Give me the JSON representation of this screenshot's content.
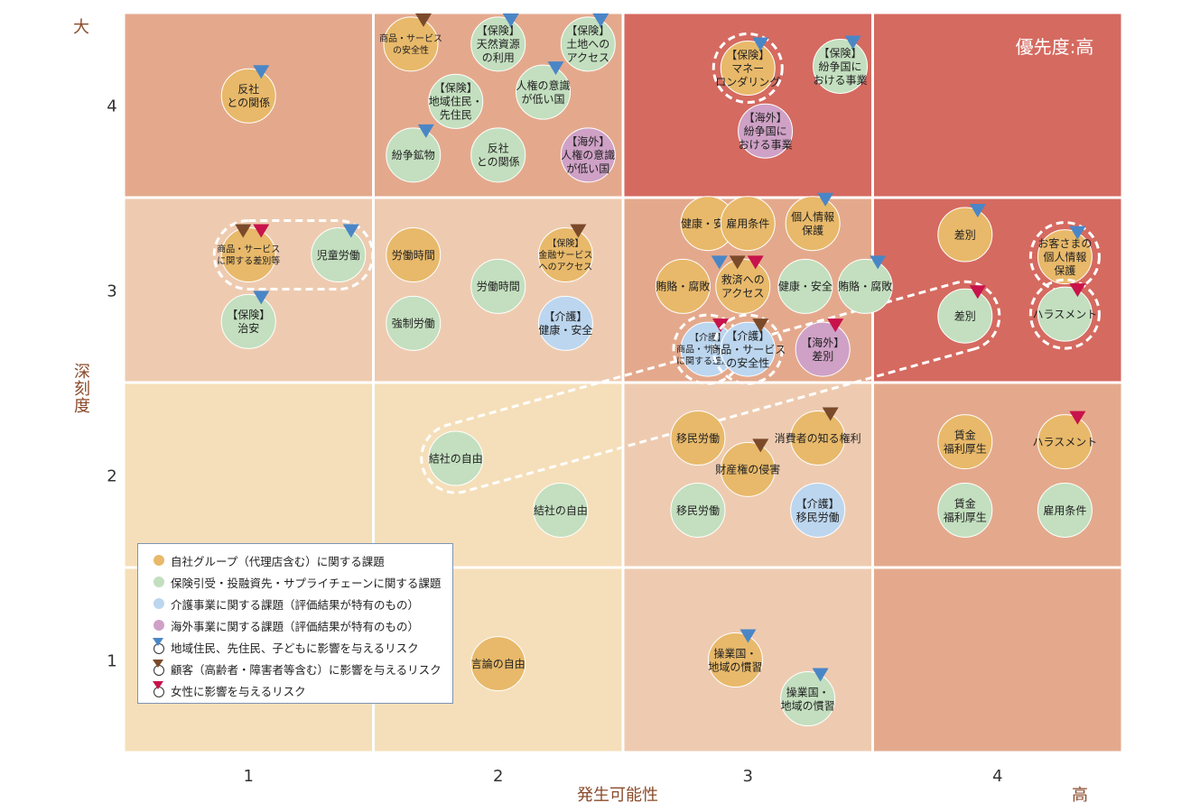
{
  "chart_data": {
    "type": "risk-matrix",
    "xlabel": "発生可能性",
    "xlabel_high": "高",
    "ylabel": "深刻度",
    "ylabel_large": "大",
    "x_ticks": [
      "1",
      "2",
      "3",
      "4"
    ],
    "y_ticks": [
      "4",
      "3",
      "2",
      "1"
    ],
    "priority_label": "優先度:高",
    "colors": {
      "self_group": "#e8b96a",
      "insurance": "#c3dfbf",
      "care": "#bcd6ef",
      "overseas": "#cfa1c6",
      "tri_community": "#4a86c6",
      "tri_customer": "#7b4a2a",
      "tri_women": "#c8134b",
      "cell_high": "#d56a60",
      "cell_midhigh": "#e4a98c",
      "cell_mid": "#eecbb0",
      "cell_low": "#f5dfba"
    },
    "cells": [
      {
        "x": 1,
        "y": 4,
        "level": "midhigh"
      },
      {
        "x": 2,
        "y": 4,
        "level": "midhigh"
      },
      {
        "x": 3,
        "y": 4,
        "level": "high"
      },
      {
        "x": 4,
        "y": 4,
        "level": "high"
      },
      {
        "x": 1,
        "y": 3,
        "level": "mid"
      },
      {
        "x": 2,
        "y": 3,
        "level": "mid"
      },
      {
        "x": 3,
        "y": 3,
        "level": "midhigh"
      },
      {
        "x": 4,
        "y": 3,
        "level": "high"
      },
      {
        "x": 1,
        "y": 2,
        "level": "low"
      },
      {
        "x": 2,
        "y": 2,
        "level": "low"
      },
      {
        "x": 3,
        "y": 2,
        "level": "mid"
      },
      {
        "x": 4,
        "y": 2,
        "level": "midhigh"
      },
      {
        "x": 1,
        "y": 1,
        "level": "low"
      },
      {
        "x": 2,
        "y": 1,
        "level": "low"
      },
      {
        "x": 3,
        "y": 1,
        "level": "mid"
      },
      {
        "x": 4,
        "y": 1,
        "level": "midhigh"
      }
    ],
    "bubbles": [
      {
        "x": 1.0,
        "y": 4.05,
        "cat": "self_group",
        "lines": [
          "反社",
          "との関係"
        ],
        "tris": [
          "community"
        ]
      },
      {
        "x": 1.65,
        "y": 4.33,
        "cat": "self_group",
        "lines": [
          "商品・サービス",
          "の安全性"
        ],
        "tris": [
          "customer"
        ],
        "small": true
      },
      {
        "x": 2.0,
        "y": 4.33,
        "cat": "insurance",
        "lines": [
          "【保険】",
          "天然資源",
          "の利用"
        ],
        "tris": [
          "community"
        ]
      },
      {
        "x": 2.36,
        "y": 4.33,
        "cat": "insurance",
        "lines": [
          "【保険】",
          "土地への",
          "アクセス"
        ],
        "tris": [
          "community"
        ]
      },
      {
        "x": 1.83,
        "y": 4.02,
        "cat": "insurance",
        "lines": [
          "【保険】",
          "地域住民・",
          "先住民"
        ]
      },
      {
        "x": 2.18,
        "y": 4.07,
        "cat": "insurance",
        "lines": [
          "人権の意識",
          "が低い国"
        ],
        "tris": [
          "community"
        ]
      },
      {
        "x": 1.66,
        "y": 3.73,
        "cat": "insurance",
        "lines": [
          "紛争鉱物"
        ],
        "tris": [
          "community"
        ]
      },
      {
        "x": 2.0,
        "y": 3.73,
        "cat": "insurance",
        "lines": [
          "反社",
          "との関係"
        ]
      },
      {
        "x": 2.36,
        "y": 3.73,
        "cat": "overseas",
        "lines": [
          "【海外】",
          "人権の意識",
          "が低い国"
        ]
      },
      {
        "x": 3.0,
        "y": 4.2,
        "cat": "self_group",
        "lines": [
          "【保険】",
          "マネー",
          "ロンダリング"
        ],
        "tris": [
          "community"
        ],
        "ring": true
      },
      {
        "x": 3.37,
        "y": 4.21,
        "cat": "insurance",
        "lines": [
          "【保険】",
          "紛争国に",
          "おける事業"
        ],
        "tris": [
          "community"
        ]
      },
      {
        "x": 3.07,
        "y": 3.86,
        "cat": "overseas",
        "lines": [
          "【海外】",
          "紛争国に",
          "おける事業"
        ]
      },
      {
        "x": 1.0,
        "y": 3.19,
        "cat": "self_group",
        "lines": [
          "商品・サービス",
          "に関する差別等"
        ],
        "tris": [
          "customer",
          "women"
        ],
        "small": true
      },
      {
        "x": 1.36,
        "y": 3.19,
        "cat": "insurance",
        "lines": [
          "児童労働"
        ],
        "tris": [
          "community"
        ]
      },
      {
        "x": 1.0,
        "y": 2.83,
        "cat": "insurance",
        "lines": [
          "【保険】",
          "治安"
        ],
        "tris": [
          "community"
        ]
      },
      {
        "x": 1.66,
        "y": 3.19,
        "cat": "self_group",
        "lines": [
          "労働時間"
        ]
      },
      {
        "x": 2.0,
        "y": 3.02,
        "cat": "insurance",
        "lines": [
          "労働時間"
        ]
      },
      {
        "x": 2.27,
        "y": 3.19,
        "cat": "self_group",
        "lines": [
          "【保険】",
          "金融サービス",
          "へのアクセス"
        ],
        "tris": [
          "customer"
        ],
        "small": true
      },
      {
        "x": 1.66,
        "y": 2.82,
        "cat": "insurance",
        "lines": [
          "強制労働"
        ]
      },
      {
        "x": 2.27,
        "y": 2.82,
        "cat": "care",
        "lines": [
          "【介護】",
          "健康・安全"
        ]
      },
      {
        "x": 2.84,
        "y": 3.36,
        "cat": "self_group",
        "lines": [
          "健康・安全"
        ]
      },
      {
        "x": 3.0,
        "y": 3.36,
        "cat": "self_group",
        "lines": [
          "雇用条件"
        ]
      },
      {
        "x": 3.26,
        "y": 3.36,
        "cat": "self_group",
        "lines": [
          "個人情報",
          "保護"
        ],
        "tris": [
          "community"
        ]
      },
      {
        "x": 2.74,
        "y": 3.02,
        "cat": "self_group",
        "lines": [
          "賄賂・腐敗"
        ]
      },
      {
        "x": 2.98,
        "y": 3.02,
        "cat": "self_group",
        "lines": [
          "救済への",
          "アクセス"
        ],
        "tris": [
          "community",
          "customer",
          "women"
        ]
      },
      {
        "x": 3.23,
        "y": 3.02,
        "cat": "insurance",
        "lines": [
          "健康・安全"
        ]
      },
      {
        "x": 3.47,
        "y": 3.02,
        "cat": "insurance",
        "lines": [
          "賄賂・腐敗"
        ],
        "tris": [
          "community"
        ]
      },
      {
        "x": 2.84,
        "y": 2.68,
        "cat": "care",
        "lines": [
          "【介護】",
          "商品・サービス",
          "に関する差別等"
        ],
        "tris": [
          "women"
        ],
        "ring": true,
        "small": true
      },
      {
        "x": 3.0,
        "y": 2.68,
        "cat": "care",
        "lines": [
          "【介護】",
          "商品・サービス",
          "の安全性"
        ],
        "tris": [
          "customer"
        ],
        "ring": true
      },
      {
        "x": 3.3,
        "y": 2.68,
        "cat": "overseas",
        "lines": [
          "【海外】",
          "差別"
        ],
        "tris": [
          "women"
        ]
      },
      {
        "x": 3.87,
        "y": 3.3,
        "cat": "self_group",
        "lines": [
          "差別"
        ],
        "tris": [
          "community"
        ]
      },
      {
        "x": 4.27,
        "y": 3.18,
        "cat": "self_group",
        "lines": [
          "お客さまの",
          "個人情報",
          "保護"
        ],
        "tris": [
          "community"
        ],
        "ring": true
      },
      {
        "x": 3.87,
        "y": 2.86,
        "cat": "insurance",
        "lines": [
          "差別"
        ],
        "tris": [
          "women"
        ]
      },
      {
        "x": 4.27,
        "y": 2.87,
        "cat": "insurance",
        "lines": [
          "ハラスメント"
        ],
        "tris": [
          "women"
        ],
        "ring": true
      },
      {
        "x": 1.83,
        "y": 2.09,
        "cat": "insurance",
        "lines": [
          "結社の自由"
        ]
      },
      {
        "x": 2.25,
        "y": 1.81,
        "cat": "insurance",
        "lines": [
          "結社の自由"
        ]
      },
      {
        "x": 2.8,
        "y": 2.2,
        "cat": "self_group",
        "lines": [
          "移民労働"
        ]
      },
      {
        "x": 3.28,
        "y": 2.2,
        "cat": "self_group",
        "lines": [
          "消費者の知る権利"
        ],
        "tris": [
          "customer"
        ]
      },
      {
        "x": 3.0,
        "y": 2.03,
        "cat": "self_group",
        "lines": [
          "財産権の侵害"
        ],
        "tris": [
          "customer"
        ]
      },
      {
        "x": 2.8,
        "y": 1.81,
        "cat": "insurance",
        "lines": [
          "移民労働"
        ]
      },
      {
        "x": 3.28,
        "y": 1.81,
        "cat": "care",
        "lines": [
          "【介護】",
          "移民労働"
        ]
      },
      {
        "x": 3.87,
        "y": 2.18,
        "cat": "self_group",
        "lines": [
          "賃金",
          "福利厚生"
        ]
      },
      {
        "x": 4.27,
        "y": 2.18,
        "cat": "self_group",
        "lines": [
          "ハラスメント"
        ],
        "tris": [
          "women"
        ]
      },
      {
        "x": 3.87,
        "y": 1.81,
        "cat": "insurance",
        "lines": [
          "賃金",
          "福利厚生"
        ]
      },
      {
        "x": 4.27,
        "y": 1.81,
        "cat": "insurance",
        "lines": [
          "雇用条件"
        ]
      },
      {
        "x": 2.0,
        "y": 0.98,
        "cat": "self_group",
        "lines": [
          "言論の自由"
        ]
      },
      {
        "x": 2.95,
        "y": 1.0,
        "cat": "self_group",
        "lines": [
          "操業国・",
          "地域の慣習"
        ],
        "tris": [
          "community"
        ]
      },
      {
        "x": 3.24,
        "y": 0.79,
        "cat": "insurance",
        "lines": [
          "操業国・",
          "地域の慣習"
        ],
        "tris": [
          "community"
        ]
      }
    ],
    "groups": [
      {
        "members": [
          12,
          13
        ],
        "type": "pill"
      },
      {
        "members": [
          32,
          34
        ],
        "type": "pill"
      }
    ],
    "legend": [
      {
        "kind": "dot",
        "color_key": "self_group",
        "label": "自社グループ（代理店含む）に関する課題"
      },
      {
        "kind": "dot",
        "color_key": "insurance",
        "label": "保険引受・投融資先・サプライチェーンに関する課題"
      },
      {
        "kind": "dot",
        "color_key": "care",
        "label": "介護事業に関する課題（評価結果が特有のもの）"
      },
      {
        "kind": "dot",
        "color_key": "overseas",
        "label": "海外事業に関する課題（評価結果が特有のもの）"
      },
      {
        "kind": "tri",
        "color_key": "tri_community",
        "label": "地域住民、先住民、子どもに影響を与えるリスク"
      },
      {
        "kind": "tri",
        "color_key": "tri_customer",
        "label": "顧客（高齢者・障害者等含む）に影響を与えるリスク"
      },
      {
        "kind": "tri",
        "color_key": "tri_women",
        "label": "女性に影響を与えるリスク"
      }
    ]
  }
}
